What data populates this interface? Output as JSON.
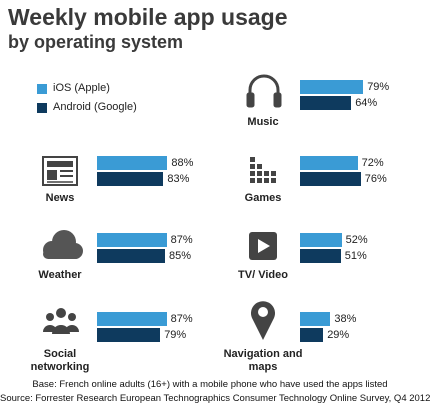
{
  "chart_data": {
    "type": "bar",
    "title": "Weekly mobile app usage",
    "subtitle": "by operating system",
    "categories": [
      "Music",
      "News",
      "Games",
      "Weather",
      "TV/ Video",
      "Social networking",
      "Navigation and maps"
    ],
    "series": [
      {
        "name": "iOS (Apple)",
        "color": "#3a9bd5",
        "values": [
          79,
          88,
          72,
          87,
          52,
          87,
          38
        ],
        "value_labels": [
          "79%",
          "88%",
          "72%",
          "87%",
          "52%",
          "87%",
          "38%"
        ]
      },
      {
        "name": "Android (Google)",
        "color": "#0e3a5e",
        "values": [
          64,
          83,
          76,
          85,
          51,
          79,
          29
        ],
        "value_labels": [
          "64%",
          "83%",
          "76%",
          "85%",
          "51%",
          "79%",
          "29%"
        ]
      }
    ],
    "notes": [
      "Base: French online adults (16+) with a mobile phone who have used the apps listed",
      "Source: Forrester Research European Technographics Consumer Technology Online Survey, Q4 2012"
    ]
  }
}
